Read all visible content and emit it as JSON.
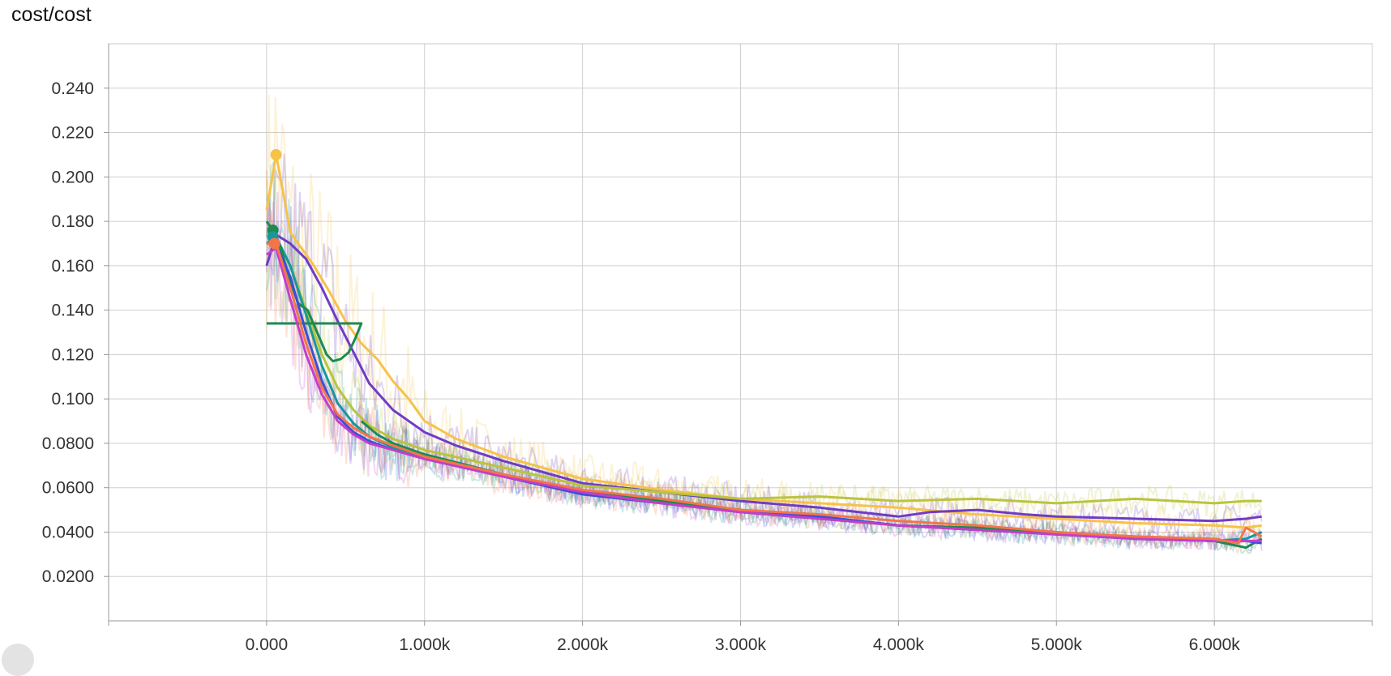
{
  "title": "cost/cost",
  "chart_data": {
    "type": "line",
    "title": "cost/cost",
    "xlabel": "",
    "ylabel": "",
    "xlim": [
      -1000,
      7000
    ],
    "ylim": [
      0.0,
      0.26
    ],
    "grid": true,
    "x_ticks": [
      0,
      1000,
      2000,
      3000,
      4000,
      5000,
      6000
    ],
    "x_tick_labels": [
      "0.000",
      "1.000k",
      "2.000k",
      "3.000k",
      "4.000k",
      "5.000k",
      "6.000k"
    ],
    "y_ticks": [
      0.02,
      0.04,
      0.06,
      0.08,
      0.1,
      0.12,
      0.14,
      0.16,
      0.18,
      0.2,
      0.22,
      0.24
    ],
    "y_tick_labels": [
      "0.0200",
      "0.0400",
      "0.0600",
      "0.0800",
      "0.100",
      "0.120",
      "0.140",
      "0.160",
      "0.180",
      "0.200",
      "0.220",
      "0.240"
    ],
    "series": [
      {
        "color": "#f6c24a",
        "x": [
          0,
          60,
          100,
          150,
          200,
          300,
          400,
          500,
          600,
          700,
          800,
          900,
          1000,
          1200,
          1500,
          2000,
          2500,
          3000,
          3500,
          4000,
          4500,
          5000,
          5500,
          6000,
          6200,
          6300
        ],
        "values": [
          0.185,
          0.21,
          0.195,
          0.175,
          0.17,
          0.16,
          0.148,
          0.135,
          0.125,
          0.118,
          0.108,
          0.1,
          0.09,
          0.082,
          0.074,
          0.064,
          0.059,
          0.055,
          0.053,
          0.051,
          0.048,
          0.046,
          0.044,
          0.043,
          0.042,
          0.043
        ],
        "raw_scale": 0.18
      },
      {
        "color": "#6f3cc4",
        "x": [
          0,
          60,
          150,
          250,
          350,
          450,
          550,
          650,
          800,
          1000,
          1200,
          1500,
          2000,
          2500,
          3000,
          3500,
          4000,
          4200,
          4500,
          4800,
          5000,
          5500,
          6000,
          6200,
          6300
        ],
        "values": [
          0.16,
          0.174,
          0.17,
          0.163,
          0.15,
          0.135,
          0.121,
          0.107,
          0.095,
          0.085,
          0.079,
          0.072,
          0.062,
          0.058,
          0.054,
          0.051,
          0.047,
          0.049,
          0.05,
          0.048,
          0.047,
          0.046,
          0.045,
          0.046,
          0.047
        ],
        "raw_scale": 0.15
      },
      {
        "color": "#bac43e",
        "x": [
          0,
          60,
          150,
          250,
          350,
          450,
          550,
          650,
          800,
          1000,
          1500,
          2000,
          2500,
          3000,
          3500,
          4000,
          4500,
          5000,
          5500,
          6000,
          6200,
          6300
        ],
        "values": [
          0.175,
          0.172,
          0.16,
          0.14,
          0.12,
          0.105,
          0.095,
          0.088,
          0.082,
          0.077,
          0.069,
          0.061,
          0.058,
          0.055,
          0.056,
          0.054,
          0.055,
          0.053,
          0.055,
          0.053,
          0.054,
          0.054
        ],
        "raw_scale": 0.12
      },
      {
        "color": "#14999c",
        "x": [
          0,
          60,
          150,
          250,
          350,
          450,
          550,
          650,
          800,
          1000,
          1500,
          2000,
          2500,
          3000,
          3500,
          4000,
          4500,
          5000,
          5500,
          6000,
          6200,
          6300
        ],
        "values": [
          0.17,
          0.173,
          0.16,
          0.138,
          0.115,
          0.098,
          0.089,
          0.083,
          0.078,
          0.074,
          0.066,
          0.058,
          0.054,
          0.049,
          0.046,
          0.043,
          0.041,
          0.039,
          0.037,
          0.036,
          0.037,
          0.04
        ],
        "raw_scale": 0.13
      },
      {
        "color": "#1e8a4f",
        "x": [
          0,
          40,
          90,
          140,
          200,
          260,
          320,
          380,
          420,
          470,
          520,
          560,
          600,
          600,
          500,
          400,
          300,
          200,
          100,
          0
        ],
        "values": [
          0.18,
          0.176,
          0.168,
          0.155,
          0.143,
          0.14,
          0.13,
          0.12,
          0.117,
          0.118,
          0.121,
          0.127,
          0.134,
          0.134,
          0.134,
          0.134,
          0.134,
          0.134,
          0.134,
          0.134
        ],
        "raw_scale": 0.0
      },
      {
        "color": "#1e8a4f",
        "x": [
          600,
          700,
          800,
          1000,
          1500,
          2000,
          2500,
          3000,
          3500,
          4000,
          4500,
          5000,
          5500,
          6000,
          6200,
          6300
        ],
        "values": [
          0.09,
          0.084,
          0.08,
          0.075,
          0.066,
          0.058,
          0.054,
          0.05,
          0.047,
          0.043,
          0.042,
          0.04,
          0.037,
          0.036,
          0.033,
          0.037
        ],
        "raw_scale": 0.11
      },
      {
        "color": "#3a4fd8",
        "x": [
          0,
          60,
          150,
          250,
          350,
          450,
          550,
          650,
          800,
          1000,
          1500,
          2000,
          2500,
          3000,
          3500,
          4000,
          4500,
          5000,
          5500,
          6000,
          6200,
          6300
        ],
        "values": [
          0.17,
          0.17,
          0.155,
          0.13,
          0.108,
          0.092,
          0.085,
          0.081,
          0.077,
          0.073,
          0.065,
          0.057,
          0.053,
          0.049,
          0.047,
          0.043,
          0.041,
          0.039,
          0.037,
          0.036,
          0.036,
          0.035
        ],
        "raw_scale": 0.12
      },
      {
        "color": "#c43ec9",
        "x": [
          0,
          60,
          150,
          250,
          350,
          450,
          550,
          650,
          800,
          1000,
          1500,
          2000,
          2500,
          3000,
          3500,
          4000,
          4500,
          5000,
          5500,
          6000,
          6200,
          6300
        ],
        "values": [
          0.165,
          0.168,
          0.145,
          0.12,
          0.102,
          0.09,
          0.084,
          0.08,
          0.077,
          0.073,
          0.065,
          0.058,
          0.053,
          0.049,
          0.046,
          0.043,
          0.041,
          0.039,
          0.037,
          0.036,
          0.036,
          0.036
        ],
        "raw_scale": 0.12
      },
      {
        "color": "#f4754a",
        "x": [
          0,
          60,
          150,
          250,
          350,
          450,
          550,
          650,
          800,
          1000,
          1500,
          2000,
          2500,
          3000,
          3500,
          4000,
          4500,
          5000,
          5500,
          6000,
          6150,
          6200,
          6300
        ],
        "values": [
          0.17,
          0.17,
          0.15,
          0.125,
          0.105,
          0.093,
          0.087,
          0.083,
          0.079,
          0.074,
          0.066,
          0.059,
          0.055,
          0.05,
          0.048,
          0.045,
          0.043,
          0.04,
          0.038,
          0.037,
          0.035,
          0.042,
          0.038
        ],
        "raw_scale": 0.14
      }
    ]
  },
  "marker_points": [
    {
      "x": 60,
      "y": 0.21,
      "color": "#f6c24a"
    },
    {
      "x": 40,
      "y": 0.176,
      "color": "#1e8a4f"
    },
    {
      "x": 40,
      "y": 0.173,
      "color": "#14999c"
    },
    {
      "x": 50,
      "y": 0.17,
      "color": "#f4754a"
    }
  ]
}
